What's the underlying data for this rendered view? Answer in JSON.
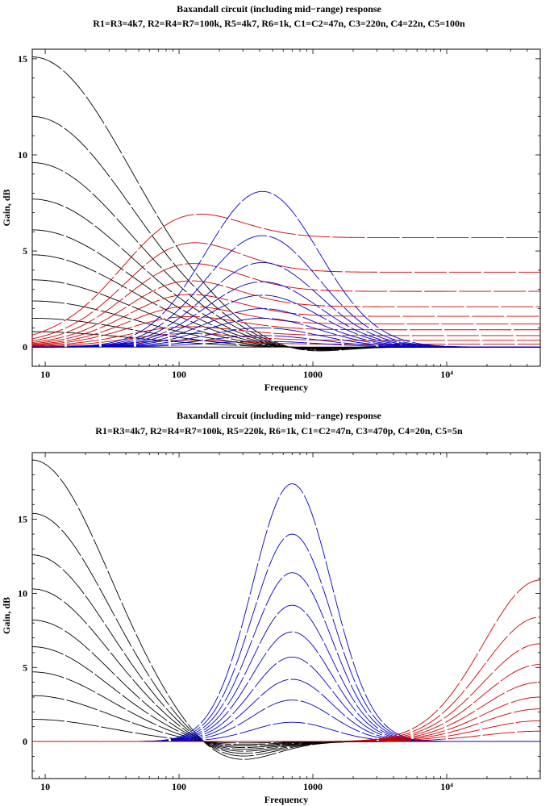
{
  "chart_data": [
    {
      "type": "line",
      "title": "Baxandall circuit (including mid−range) response",
      "subtitle": "R1=R3=4k7, R2=R4=R7=100k, R5=4k7, R6=1k, C1=C2=47n, C3=220n, C4=22n, C5=100n",
      "xlabel": "Frequency",
      "ylabel": "Gain, dB",
      "x_scale": "log",
      "xlim": [
        8,
        50000
      ],
      "ylim": [
        -1,
        15.5
      ],
      "x_ticks": [
        {
          "value": 10,
          "label": "10"
        },
        {
          "value": 100,
          "label": "100"
        },
        {
          "value": 1000,
          "label": "1000"
        },
        {
          "value": 10000,
          "label": "10⁴"
        }
      ],
      "y_ticks": [
        {
          "value": 0,
          "label": "0"
        },
        {
          "value": 5,
          "label": "5"
        },
        {
          "value": 10,
          "label": "10"
        },
        {
          "value": 15,
          "label": "15"
        }
      ],
      "groups": [
        {
          "color": "#000000",
          "kind": "bass",
          "peak_freq": 8,
          "width_decades": 1.05,
          "dip_freq": 700,
          "dip_ratio": 0.035,
          "peaks": [
            15.1,
            12.0,
            9.6,
            7.7,
            6.1,
            4.8,
            3.5,
            2.4,
            1.5,
            0.8
          ]
        },
        {
          "color": "#cc0000",
          "kind": "plateau",
          "peak_freq": 90,
          "width_decades": 0.6,
          "peaks": [
            7.7,
            6.1,
            4.9,
            3.9,
            3.1,
            2.4,
            1.8,
            1.2,
            0.8,
            0.4
          ],
          "floors": [
            5.7,
            3.9,
            2.9,
            2.1,
            1.6,
            1.2,
            0.9,
            0.6,
            0.35,
            0.15
          ]
        },
        {
          "color": "#0000cc",
          "kind": "mid",
          "peak_freq": 420,
          "width_decades": 0.6,
          "peaks": [
            8.1,
            5.8,
            4.4,
            3.4,
            2.7,
            2.0,
            1.5,
            1.0,
            0.6,
            0.3
          ]
        }
      ]
    },
    {
      "type": "line",
      "title": "Baxandall circuit (including mid−range) response",
      "subtitle": "R1=R3=4k7, R2=R4=R7=100k, R5=220k, R6=1k, C1=C2=47n, C3=470p, C4=20n, C5=5n",
      "xlabel": "Frequency",
      "ylabel": "Gain, dB",
      "x_scale": "log",
      "xlim": [
        8,
        50000
      ],
      "ylim": [
        -2.5,
        19.5
      ],
      "x_ticks": [
        {
          "value": 10,
          "label": "10"
        },
        {
          "value": 100,
          "label": "100"
        },
        {
          "value": 1000,
          "label": "1000"
        },
        {
          "value": 10000,
          "label": "10⁴"
        }
      ],
      "y_ticks": [
        {
          "value": 0,
          "label": "0"
        },
        {
          "value": 5,
          "label": "5"
        },
        {
          "value": 10,
          "label": "10"
        },
        {
          "value": 15,
          "label": "15"
        }
      ],
      "groups": [
        {
          "color": "#000000",
          "kind": "bass",
          "peak_freq": 8,
          "width_decades": 0.8,
          "dip_freq": 230,
          "dip_ratio": 0.09,
          "peaks": [
            19.0,
            15.4,
            12.6,
            10.3,
            8.2,
            6.4,
            4.7,
            3.1,
            1.5
          ]
        },
        {
          "color": "#0000cc",
          "kind": "mid",
          "peak_freq": 700,
          "width_decades": 0.42,
          "peaks": [
            17.4,
            14.0,
            11.4,
            9.2,
            7.4,
            5.7,
            4.2,
            2.8,
            1.3
          ]
        },
        {
          "color": "#cc0000",
          "kind": "treble",
          "peak_freq": 50000,
          "width_decades": 0.6,
          "peaks": [
            10.9,
            8.4,
            6.6,
            5.2,
            4.0,
            3.0,
            2.2,
            1.4,
            0.7
          ]
        }
      ]
    }
  ]
}
